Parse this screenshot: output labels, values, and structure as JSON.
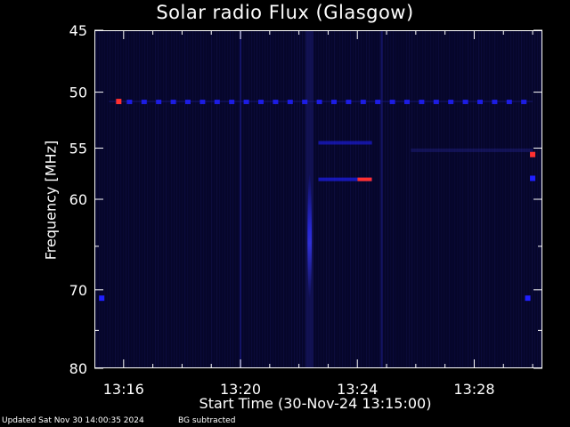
{
  "chart_data": {
    "type": "heatmap",
    "title": "Solar radio Flux (Glasgow)",
    "ylabel": "Frequency [MHz]",
    "xlabel": "Start Time (30-Nov-24 13:15:00)",
    "ylim": [
      45,
      80
    ],
    "y_scale": "log",
    "y_ticks_major": [
      45,
      50,
      55,
      60,
      70,
      80
    ],
    "y_ticks_minor": [
      65,
      75
    ],
    "xlim": [
      "13:15:00",
      "13:30:20"
    ],
    "x_ticks": [
      "13:16",
      "13:20",
      "13:24",
      "13:28"
    ],
    "x_ticks_minor": [
      "13:17",
      "13:18",
      "13:19",
      "13:21",
      "13:22",
      "13:23",
      "13:25",
      "13:26",
      "13:27",
      "13:29",
      "13:30"
    ],
    "colors": {
      "background": "#000000",
      "low": "#0a0a3a",
      "mid": "#2020ff",
      "high": "#ff3030",
      "axes": "#ffffff"
    },
    "features": [
      {
        "kind": "burst",
        "start": "13:22:14",
        "end": "13:22:30",
        "f_low": 45,
        "f_high": 80,
        "peak_f": 64,
        "intensity": 0.75
      },
      {
        "kind": "band",
        "start": "13:22:40",
        "end": "13:24:30",
        "freq": 54.5,
        "intensity": 0.55
      },
      {
        "kind": "band",
        "start": "13:22:40",
        "end": "13:24:30",
        "freq": 58.0,
        "intensity": 0.65,
        "peak_time": "13:24:15"
      },
      {
        "kind": "rfi_dashes",
        "start": "13:15:30",
        "end": "13:30:00",
        "freq": 50.8,
        "intensity": 0.6
      },
      {
        "kind": "spot",
        "time": "13:15:50",
        "freq": 50.8,
        "intensity": 1.0
      },
      {
        "kind": "spot",
        "time": "13:30:00",
        "freq": 55.6,
        "intensity": 1.0
      },
      {
        "kind": "spot",
        "time": "13:30:00",
        "freq": 57.9,
        "intensity": 0.8
      },
      {
        "kind": "spot",
        "time": "13:15:15",
        "freq": 71.0,
        "intensity": 0.7
      },
      {
        "kind": "spot",
        "time": "13:29:50",
        "freq": 71.0,
        "intensity": 0.7
      },
      {
        "kind": "band",
        "start": "13:25:50",
        "end": "13:30:00",
        "freq": 55.2,
        "intensity": 0.3
      },
      {
        "kind": "vline",
        "time": "13:20:00",
        "intensity": 0.3
      },
      {
        "kind": "vline",
        "time": "13:24:50",
        "intensity": 0.3
      }
    ]
  },
  "footer": {
    "updated": "Updated Sat Nov 30 14:00:35 2024",
    "note": "BG subtracted"
  }
}
